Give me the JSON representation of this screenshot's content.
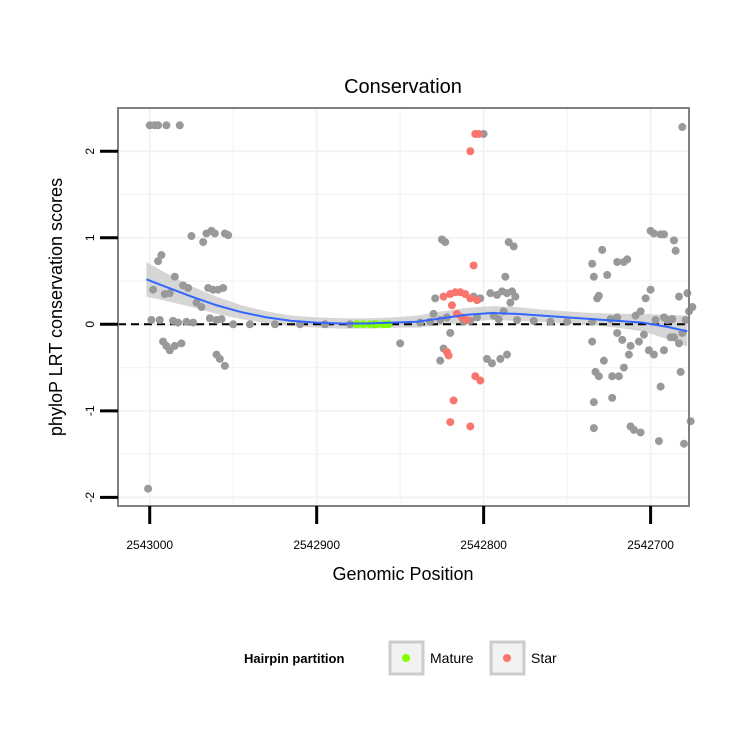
{
  "chart_data": {
    "type": "scatter",
    "title": "Conservation",
    "xlabel": "Genomic Position",
    "ylabel": "phyloP LRT conservation scores",
    "x_reversed": true,
    "xlim": [
      2543019,
      2542677
    ],
    "ylim": [
      -2.1,
      2.5
    ],
    "x_ticks": [
      2543000,
      2542900,
      2542800,
      2542700
    ],
    "x_tick_labels": [
      "2543000",
      "2542900",
      "2542800",
      "2542700"
    ],
    "y_ticks": [
      -2,
      -1,
      0,
      1,
      2
    ],
    "y_tick_labels": [
      "-2",
      "-1",
      "0",
      "1",
      "2"
    ],
    "y_minor_gridlines": [
      -1.5,
      -0.5,
      0.5,
      1.5
    ],
    "x_minor_gridlines": [
      2542950,
      2542850,
      2542750
    ],
    "grid": true,
    "reference_line": {
      "y": 0,
      "style": "dashed"
    },
    "colors": {
      "background": "#ffffff",
      "panel_border": "#808080",
      "gridline": "#f2f2f2",
      "other": "#999999",
      "mature": "#7fff00",
      "star": "#f8766d",
      "smooth_line": "#3366ff",
      "smooth_band": "#c8c8c8",
      "legend_key_border": "#cccccc"
    },
    "legend": {
      "title": "Hairpin partition",
      "placement": "bottom",
      "entries": [
        {
          "label": "Mature",
          "color": "#7fff00"
        },
        {
          "label": "Star",
          "color": "#f8766d"
        }
      ]
    },
    "smooth": {
      "x": [
        2543002,
        2542990,
        2542975,
        2542960,
        2542945,
        2542930,
        2542915,
        2542900,
        2542885,
        2542870,
        2542855,
        2542840,
        2542825,
        2542810,
        2542795,
        2542780,
        2542765,
        2542750,
        2542735,
        2542720,
        2542705,
        2542690,
        2542678
      ],
      "y": [
        0.52,
        0.43,
        0.32,
        0.22,
        0.14,
        0.08,
        0.04,
        0.02,
        0.01,
        0.01,
        0.02,
        0.03,
        0.07,
        0.11,
        0.13,
        0.12,
        0.1,
        0.08,
        0.06,
        0.04,
        0.02,
        -0.03,
        -0.08
      ],
      "band_halfwidth": [
        0.2,
        0.16,
        0.12,
        0.1,
        0.08,
        0.07,
        0.06,
        0.06,
        0.06,
        0.06,
        0.06,
        0.07,
        0.08,
        0.08,
        0.08,
        0.08,
        0.07,
        0.07,
        0.07,
        0.08,
        0.1,
        0.14,
        0.18
      ]
    },
    "series": [
      {
        "name": "Other",
        "color": "#999999",
        "points": [
          [
            2543000,
            2.3
          ],
          [
            2542997,
            2.3
          ],
          [
            2542995,
            2.3
          ],
          [
            2542990,
            2.3
          ],
          [
            2542982,
            2.3
          ],
          [
            2543001,
            -1.9
          ],
          [
            2542995,
            0.73
          ],
          [
            2542993,
            0.8
          ],
          [
            2542998,
            0.4
          ],
          [
            2542991,
            0.35
          ],
          [
            2542988,
            0.36
          ],
          [
            2542985,
            0.55
          ],
          [
            2542980,
            0.45
          ],
          [
            2542977,
            0.42
          ],
          [
            2542999,
            0.05
          ],
          [
            2542994,
            0.05
          ],
          [
            2542986,
            0.04
          ],
          [
            2542983,
            0.02
          ],
          [
            2542978,
            0.03
          ],
          [
            2542974,
            0.02
          ],
          [
            2542990,
            -0.25
          ],
          [
            2542988,
            -0.3
          ],
          [
            2542985,
            -0.25
          ],
          [
            2542981,
            -0.22
          ],
          [
            2542992,
            -0.2
          ],
          [
            2542975,
            1.02
          ],
          [
            2542968,
            0.95
          ],
          [
            2542966,
            1.05
          ],
          [
            2542963,
            1.08
          ],
          [
            2542961,
            1.05
          ],
          [
            2542972,
            0.25
          ],
          [
            2542969,
            0.2
          ],
          [
            2542965,
            0.42
          ],
          [
            2542962,
            0.4
          ],
          [
            2542959,
            0.4
          ],
          [
            2542956,
            0.42
          ],
          [
            2542955,
            1.05
          ],
          [
            2542953,
            1.03
          ],
          [
            2542964,
            0.07
          ],
          [
            2542960,
            0.05
          ],
          [
            2542957,
            0.06
          ],
          [
            2542960,
            -0.35
          ],
          [
            2542958,
            -0.4
          ],
          [
            2542955,
            -0.48
          ],
          [
            2542950,
            0.0
          ],
          [
            2542940,
            0.0
          ],
          [
            2542925,
            0.0
          ],
          [
            2542910,
            0.0
          ],
          [
            2542895,
            0.0
          ],
          [
            2542880,
            0.0
          ],
          [
            2542865,
            0.0
          ],
          [
            2542850,
            -0.22
          ],
          [
            2542838,
            0.02
          ],
          [
            2542832,
            0.03
          ],
          [
            2542826,
            0.05
          ],
          [
            2542822,
            0.08
          ],
          [
            2542825,
            0.98
          ],
          [
            2542823,
            0.95
          ],
          [
            2542829,
            0.3
          ],
          [
            2542830,
            0.12
          ],
          [
            2542820,
            -0.1
          ],
          [
            2542824,
            -0.28
          ],
          [
            2542826,
            -0.42
          ],
          [
            2542812,
            0.03
          ],
          [
            2542808,
            0.04
          ],
          [
            2542804,
            0.08
          ],
          [
            2542800,
            2.2
          ],
          [
            2542802,
            0.3
          ],
          [
            2542806,
            0.32
          ],
          [
            2542796,
            0.36
          ],
          [
            2542792,
            0.34
          ],
          [
            2542789,
            0.38
          ],
          [
            2542786,
            0.36
          ],
          [
            2542783,
            0.38
          ],
          [
            2542785,
            0.95
          ],
          [
            2542782,
            0.9
          ],
          [
            2542787,
            0.55
          ],
          [
            2542784,
            0.25
          ],
          [
            2542788,
            0.15
          ],
          [
            2542781,
            0.32
          ],
          [
            2542798,
            -0.4
          ],
          [
            2542795,
            -0.45
          ],
          [
            2542790,
            -0.4
          ],
          [
            2542786,
            -0.35
          ],
          [
            2542794,
            0.1
          ],
          [
            2542791,
            0.06
          ],
          [
            2542780,
            0.05
          ],
          [
            2542770,
            0.04
          ],
          [
            2542760,
            0.03
          ],
          [
            2542750,
            0.03
          ],
          [
            2542735,
            0.03
          ],
          [
            2542720,
            0.08
          ],
          [
            2542681,
            2.28
          ],
          [
            2542735,
            0.7
          ],
          [
            2542734,
            0.55
          ],
          [
            2542729,
            0.86
          ],
          [
            2542726,
            0.57
          ],
          [
            2542720,
            0.72
          ],
          [
            2542716,
            0.72
          ],
          [
            2542714,
            0.75
          ],
          [
            2542732,
            0.3
          ],
          [
            2542731,
            0.33
          ],
          [
            2542724,
            0.06
          ],
          [
            2542735,
            -0.2
          ],
          [
            2542733,
            -0.55
          ],
          [
            2542731,
            -0.6
          ],
          [
            2542728,
            -0.42
          ],
          [
            2542723,
            -0.6
          ],
          [
            2542719,
            -0.6
          ],
          [
            2542716,
            -0.5
          ],
          [
            2542713,
            -0.35
          ],
          [
            2542734,
            -0.9
          ],
          [
            2542734,
            -1.2
          ],
          [
            2542723,
            -0.85
          ],
          [
            2542720,
            -0.1
          ],
          [
            2542717,
            -0.18
          ],
          [
            2542712,
            -0.25
          ],
          [
            2542709,
            0.1
          ],
          [
            2542706,
            0.15
          ],
          [
            2542703,
            0.3
          ],
          [
            2542700,
            0.4
          ],
          [
            2542697,
            0.05
          ],
          [
            2542707,
            -0.2
          ],
          [
            2542704,
            -0.12
          ],
          [
            2542701,
            -0.3
          ],
          [
            2542698,
            -0.35
          ],
          [
            2542694,
            -0.72
          ],
          [
            2542692,
            -0.3
          ],
          [
            2542688,
            -0.15
          ],
          [
            2542686,
            -0.15
          ],
          [
            2542683,
            -0.22
          ],
          [
            2542681,
            -0.1
          ],
          [
            2542712,
            -1.18
          ],
          [
            2542710,
            -1.22
          ],
          [
            2542706,
            -1.25
          ],
          [
            2542700,
            1.08
          ],
          [
            2542698,
            1.05
          ],
          [
            2542694,
            1.04
          ],
          [
            2542692,
            1.04
          ],
          [
            2542686,
            0.97
          ],
          [
            2542685,
            0.85
          ],
          [
            2542683,
            0.32
          ],
          [
            2542695,
            -1.35
          ],
          [
            2542680,
            -1.38
          ],
          [
            2542676,
            -1.12
          ],
          [
            2542679,
            0.05
          ],
          [
            2542677,
            0.15
          ],
          [
            2542678,
            0.36
          ],
          [
            2542675,
            0.2
          ],
          [
            2542682,
            -0.55
          ],
          [
            2542692,
            0.08
          ],
          [
            2542690,
            0.05
          ],
          [
            2542687,
            0.06
          ]
        ]
      },
      {
        "name": "Mature",
        "color": "#7fff00",
        "points": [
          [
            2542876,
            0.0
          ],
          [
            2542872,
            0.0
          ],
          [
            2542868,
            0.0
          ],
          [
            2542864,
            0.0
          ],
          [
            2542860,
            0.0
          ],
          [
            2542857,
            0.0
          ]
        ]
      },
      {
        "name": "Star",
        "color": "#f8766d",
        "points": [
          [
            2542803,
            2.2
          ],
          [
            2542805,
            2.2
          ],
          [
            2542808,
            2.0
          ],
          [
            2542806,
            0.68
          ],
          [
            2542824,
            0.32
          ],
          [
            2542820,
            0.35
          ],
          [
            2542817,
            0.37
          ],
          [
            2542814,
            0.37
          ],
          [
            2542811,
            0.35
          ],
          [
            2542808,
            0.3
          ],
          [
            2542804,
            0.28
          ],
          [
            2542819,
            0.22
          ],
          [
            2542816,
            0.12
          ],
          [
            2542813,
            0.08
          ],
          [
            2542810,
            0.05
          ],
          [
            2542822,
            -0.32
          ],
          [
            2542821,
            -0.36
          ],
          [
            2542805,
            -0.6
          ],
          [
            2542802,
            -0.65
          ],
          [
            2542818,
            -0.88
          ],
          [
            2542820,
            -1.13
          ],
          [
            2542808,
            -1.18
          ]
        ]
      }
    ]
  }
}
